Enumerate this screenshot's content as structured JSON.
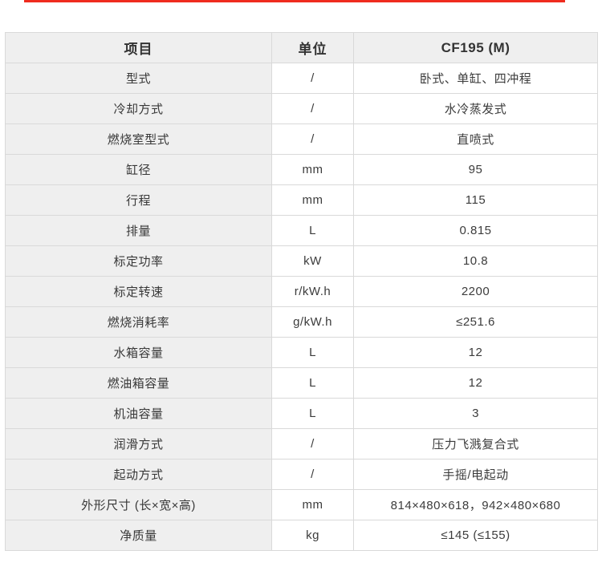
{
  "page": {
    "accent_line_color": "#ef2b1e",
    "background_color": "#ffffff",
    "first_column_bg": "#efefef",
    "border_color": "#d9d9d9"
  },
  "table": {
    "headers": {
      "item": "项目",
      "unit": "单位",
      "model": "CF195 (M)"
    },
    "rows": [
      {
        "item": "型式",
        "unit": "/",
        "value": "卧式、单缸、四冲程"
      },
      {
        "item": "冷却方式",
        "unit": "/",
        "value": "水冷蒸发式"
      },
      {
        "item": "燃烧室型式",
        "unit": "/",
        "value": "直喷式"
      },
      {
        "item": "缸径",
        "unit": "mm",
        "value": "95"
      },
      {
        "item": "行程",
        "unit": "mm",
        "value": "115"
      },
      {
        "item": "排量",
        "unit": "L",
        "value": "0.815"
      },
      {
        "item": "标定功率",
        "unit": "kW",
        "value": "10.8"
      },
      {
        "item": "标定转速",
        "unit": "r/kW.h",
        "value": "2200"
      },
      {
        "item": "燃烧消耗率",
        "unit": "g/kW.h",
        "value": "≤251.6"
      },
      {
        "item": "水箱容量",
        "unit": "L",
        "value": "12"
      },
      {
        "item": "燃油箱容量",
        "unit": "L",
        "value": "12"
      },
      {
        "item": "机油容量",
        "unit": "L",
        "value": "3"
      },
      {
        "item": "润滑方式",
        "unit": "/",
        "value": "压力飞溅复合式"
      },
      {
        "item": "起动方式",
        "unit": "/",
        "value": "手摇/电起动"
      },
      {
        "item": "外形尺寸 (长×宽×高)",
        "unit": "mm",
        "value": "814×480×618，942×480×680"
      },
      {
        "item": "净质量",
        "unit": "kg",
        "value": "≤145 (≤155)"
      }
    ]
  },
  "chart_data": {
    "type": "table",
    "title": "CF195 (M) 规格参数",
    "columns": [
      "项目",
      "单位",
      "CF195 (M)"
    ],
    "rows": [
      [
        "型式",
        "/",
        "卧式、单缸、四冲程"
      ],
      [
        "冷却方式",
        "/",
        "水冷蒸发式"
      ],
      [
        "燃烧室型式",
        "/",
        "直喷式"
      ],
      [
        "缸径",
        "mm",
        "95"
      ],
      [
        "行程",
        "mm",
        "115"
      ],
      [
        "排量",
        "L",
        "0.815"
      ],
      [
        "标定功率",
        "kW",
        "10.8"
      ],
      [
        "标定转速",
        "r/kW.h",
        "2200"
      ],
      [
        "燃烧消耗率",
        "g/kW.h",
        "≤251.6"
      ],
      [
        "水箱容量",
        "L",
        "12"
      ],
      [
        "燃油箱容量",
        "L",
        "12"
      ],
      [
        "机油容量",
        "L",
        "3"
      ],
      [
        "润滑方式",
        "/",
        "压力飞溅复合式"
      ],
      [
        "起动方式",
        "/",
        "手摇/电起动"
      ],
      [
        "外形尺寸 (长×宽×高)",
        "mm",
        "814×480×618，942×480×680"
      ],
      [
        "净质量",
        "kg",
        "≤145 (≤155)"
      ]
    ]
  }
}
